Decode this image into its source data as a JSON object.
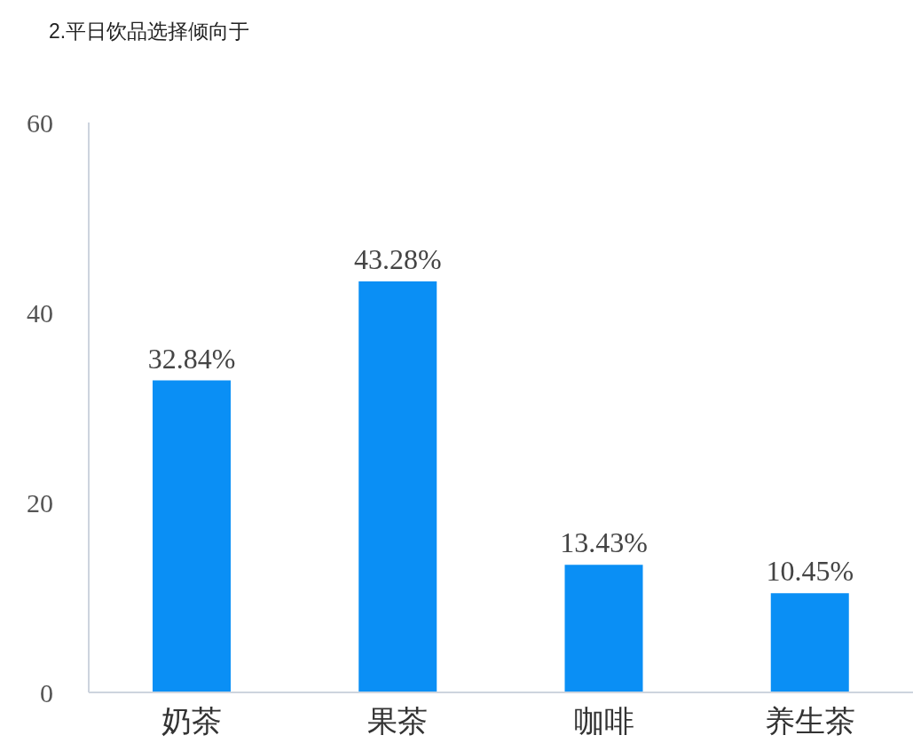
{
  "chart_data": {
    "type": "bar",
    "title": "2.平日饮品选择倾向于",
    "categories": [
      "奶茶",
      "果茶",
      "咖啡",
      "养生茶"
    ],
    "values": [
      32.84,
      43.28,
      13.43,
      10.45
    ],
    "value_labels": [
      "32.84%",
      "43.28%",
      "13.43%",
      "10.45%"
    ],
    "color": "#0a8ff5",
    "ylim": [
      0,
      60
    ],
    "yticks": [
      0,
      20,
      40,
      60
    ]
  }
}
